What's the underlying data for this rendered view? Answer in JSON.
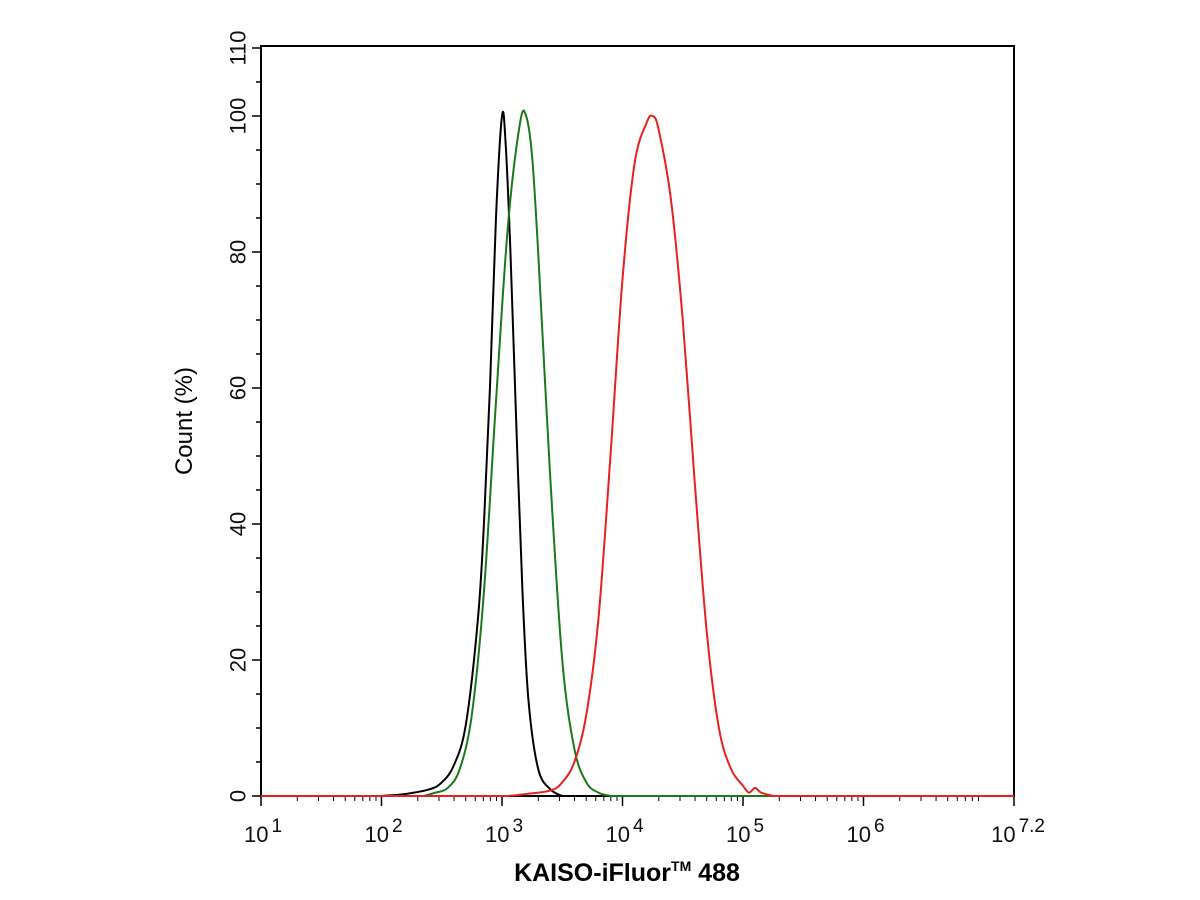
{
  "chart_data": {
    "type": "line",
    "title": "",
    "xlabel": "KAISO-iFluor™ 488",
    "xlabel_main": "KAISO-iFluor",
    "xlabel_sup": "TM",
    "xlabel_tail": " 488",
    "ylabel": "Count  (%)",
    "x_scale": "log10",
    "xlim_exponent": [
      1,
      7.2
    ],
    "ylim": [
      0,
      110
    ],
    "grid": false,
    "legend": "none",
    "x_ticks": [
      {
        "base": "10",
        "exp": "1",
        "value": 1
      },
      {
        "base": "10",
        "exp": "2",
        "value": 2
      },
      {
        "base": "10",
        "exp": "3",
        "value": 3
      },
      {
        "base": "10",
        "exp": "4",
        "value": 4
      },
      {
        "base": "10",
        "exp": "5",
        "value": 5
      },
      {
        "base": "10",
        "exp": "6",
        "value": 6
      },
      {
        "base": "10",
        "exp": "7.2",
        "value": 7.2
      }
    ],
    "y_ticks": [
      "0",
      "20",
      "40",
      "60",
      "80",
      "100",
      "110"
    ],
    "y_tick_values": [
      0,
      20,
      40,
      60,
      80,
      100,
      110
    ],
    "series": [
      {
        "color": "#000000",
        "points": [
          [
            2.0,
            0
          ],
          [
            2.2,
            0.3
          ],
          [
            2.4,
            1.0
          ],
          [
            2.5,
            2.0
          ],
          [
            2.6,
            4.5
          ],
          [
            2.7,
            10.5
          ],
          [
            2.8,
            26
          ],
          [
            2.85,
            40
          ],
          [
            2.9,
            60
          ],
          [
            2.95,
            85
          ],
          [
            3.0,
            100
          ],
          [
            3.03,
            96
          ],
          [
            3.07,
            80
          ],
          [
            3.12,
            54
          ],
          [
            3.17,
            30
          ],
          [
            3.22,
            14
          ],
          [
            3.3,
            4
          ],
          [
            3.4,
            1
          ],
          [
            3.5,
            0
          ]
        ]
      },
      {
        "color": "#1a7a1a",
        "points": [
          [
            2.35,
            0
          ],
          [
            2.45,
            0.5
          ],
          [
            2.55,
            1.2
          ],
          [
            2.65,
            4
          ],
          [
            2.75,
            12
          ],
          [
            2.85,
            30
          ],
          [
            2.95,
            58
          ],
          [
            3.05,
            84
          ],
          [
            3.15,
            99
          ],
          [
            3.2,
            100
          ],
          [
            3.25,
            94
          ],
          [
            3.3,
            80
          ],
          [
            3.4,
            47
          ],
          [
            3.5,
            20
          ],
          [
            3.6,
            7
          ],
          [
            3.7,
            2
          ],
          [
            3.8,
            0.5
          ],
          [
            3.9,
            0
          ]
        ]
      },
      {
        "color": "#e8201e",
        "points": [
          [
            3.05,
            0
          ],
          [
            3.2,
            0.3
          ],
          [
            3.4,
            0.8
          ],
          [
            3.5,
            2
          ],
          [
            3.6,
            5
          ],
          [
            3.7,
            12
          ],
          [
            3.8,
            26
          ],
          [
            3.9,
            50
          ],
          [
            4.0,
            76
          ],
          [
            4.1,
            93
          ],
          [
            4.2,
            99
          ],
          [
            4.25,
            100
          ],
          [
            4.3,
            98
          ],
          [
            4.4,
            88
          ],
          [
            4.5,
            70
          ],
          [
            4.6,
            46
          ],
          [
            4.7,
            24
          ],
          [
            4.8,
            10
          ],
          [
            4.9,
            4
          ],
          [
            5.0,
            1.5
          ],
          [
            5.05,
            0.5
          ],
          [
            5.1,
            1.2
          ],
          [
            5.15,
            0.5
          ],
          [
            5.25,
            0
          ]
        ]
      }
    ]
  }
}
